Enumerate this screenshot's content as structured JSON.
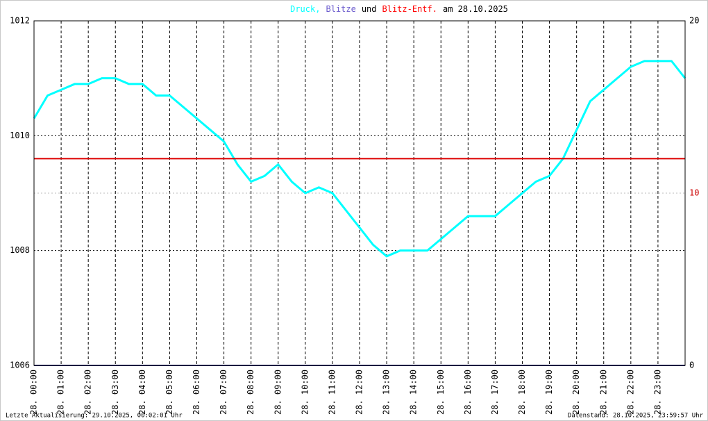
{
  "chart_data": {
    "type": "line",
    "title_parts": [
      {
        "text": "Druck,",
        "color": "#00ffff"
      },
      {
        "text": "Blitze",
        "color": "#6a5acd"
      },
      {
        "text": "und",
        "color": "#000000"
      },
      {
        "text": "Blitz-Entf.",
        "color": "#ff0000"
      },
      {
        "text": "am 28.10.2025",
        "color": "#000000"
      }
    ],
    "x": [
      0,
      0.5,
      1,
      1.5,
      2,
      2.5,
      3,
      3.5,
      4,
      4.5,
      5,
      5.5,
      6,
      6.5,
      7,
      7.5,
      8,
      8.5,
      9,
      9.5,
      10,
      10.5,
      11,
      11.5,
      12,
      12.5,
      13,
      13.5,
      14,
      14.5,
      15,
      15.5,
      16,
      16.5,
      17,
      17.5,
      18,
      18.5,
      19,
      19.5,
      20,
      20.5,
      21,
      21.5,
      22,
      22.5,
      23,
      23.5,
      24
    ],
    "series": [
      {
        "color": "#00ffff",
        "values": [
          1010.3,
          1010.7,
          1010.8,
          1010.9,
          1010.9,
          1011.0,
          1011.0,
          1010.9,
          1010.9,
          1010.7,
          1010.7,
          1010.5,
          1010.3,
          1010.1,
          1009.9,
          1009.5,
          1009.2,
          1009.3,
          1009.5,
          1009.2,
          1009.0,
          1009.1,
          1009.0,
          1008.7,
          1008.4,
          1008.1,
          1007.9,
          1008.0,
          1008.0,
          1008.0,
          1008.2,
          1008.4,
          1008.6,
          1008.6,
          1008.6,
          1008.8,
          1009.0,
          1009.2,
          1009.3,
          1009.6,
          1010.1,
          1010.6,
          1010.8,
          1011.0,
          1011.2,
          1011.3,
          1011.3,
          1011.3,
          1011.0
        ]
      },
      {
        "color": "#000080",
        "axis": "y2",
        "values": [
          0,
          0,
          0,
          0,
          0,
          0,
          0,
          0,
          0,
          0,
          0,
          0,
          0,
          0,
          0,
          0,
          0,
          0,
          0,
          0,
          0,
          0,
          0,
          0,
          0,
          0,
          0,
          0,
          0,
          0,
          0,
          0,
          0,
          0,
          0,
          0,
          0,
          0,
          0,
          0,
          0,
          0,
          0,
          0,
          0,
          0,
          0,
          0,
          0
        ]
      },
      {
        "color": "#dd0000",
        "axis": "y2",
        "values": [
          12,
          12,
          12,
          12,
          12,
          12,
          12,
          12,
          12,
          12,
          12,
          12,
          12,
          12,
          12,
          12,
          12,
          12,
          12,
          12,
          12,
          12,
          12,
          12,
          12,
          12,
          12,
          12,
          12,
          12,
          12,
          12,
          12,
          12,
          12,
          12,
          12,
          12,
          12,
          12,
          12,
          12,
          12,
          12,
          12,
          12,
          12,
          12,
          12
        ]
      }
    ],
    "xlim": [
      0,
      24
    ],
    "xticks": [
      {
        "value": 0,
        "label": "28. 00:00"
      },
      {
        "value": 1,
        "label": "28. 01:00"
      },
      {
        "value": 2,
        "label": "28. 02:00"
      },
      {
        "value": 3,
        "label": "28. 03:00"
      },
      {
        "value": 4,
        "label": "28. 04:00"
      },
      {
        "value": 5,
        "label": "28. 05:00"
      },
      {
        "value": 6,
        "label": "28. 06:00"
      },
      {
        "value": 7,
        "label": "28. 07:00"
      },
      {
        "value": 8,
        "label": "28. 08:00"
      },
      {
        "value": 9,
        "label": "28. 09:00"
      },
      {
        "value": 10,
        "label": "28. 10:00"
      },
      {
        "value": 11,
        "label": "28. 11:00"
      },
      {
        "value": 12,
        "label": "28. 12:00"
      },
      {
        "value": 13,
        "label": "28. 13:00"
      },
      {
        "value": 14,
        "label": "28. 14:00"
      },
      {
        "value": 15,
        "label": "28. 15:00"
      },
      {
        "value": 16,
        "label": "28. 16:00"
      },
      {
        "value": 17,
        "label": "28. 17:00"
      },
      {
        "value": 18,
        "label": "28. 18:00"
      },
      {
        "value": 19,
        "label": "28. 19:00"
      },
      {
        "value": 20,
        "label": "28. 20:00"
      },
      {
        "value": 21,
        "label": "28. 21:00"
      },
      {
        "value": 22,
        "label": "28. 22:00"
      },
      {
        "value": 23,
        "label": "28. 23:00"
      }
    ],
    "ylim": [
      1006,
      1012
    ],
    "yticks": [
      1006,
      1008,
      1010,
      1012
    ],
    "y2lim": [
      0,
      20
    ],
    "y2ticks": [
      0,
      10,
      20
    ],
    "y2tick_colors": [
      "#000000",
      "#cc0000",
      "#000000"
    ],
    "grid": true,
    "footer_left": "Letzte Aktualisierung: 29.10.2025, 00:02:01 Uhr",
    "footer_right": "Datenstand: 28.10.2025, 23:59:57 Uhr"
  }
}
